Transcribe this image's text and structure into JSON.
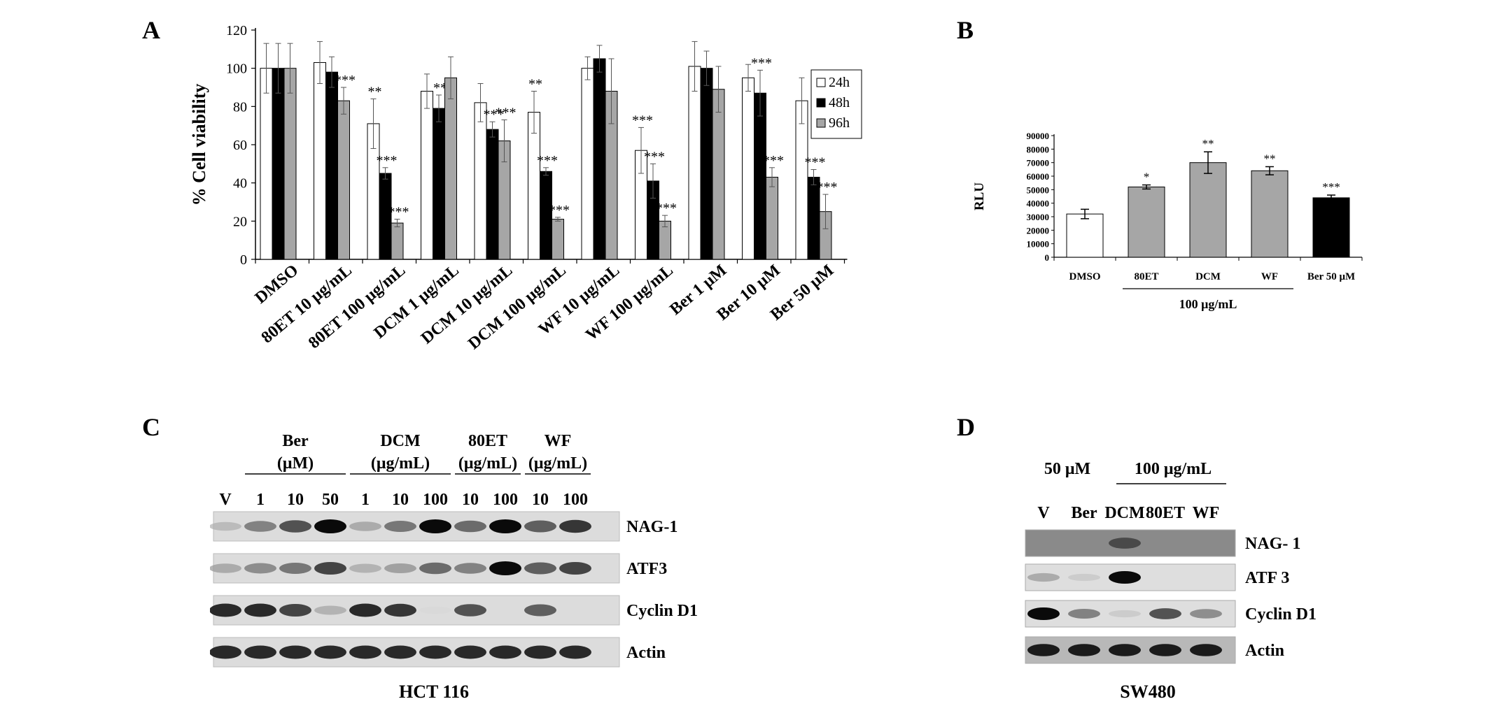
{
  "panels": {
    "a": {
      "letter": "A"
    },
    "b": {
      "letter": "B"
    },
    "c": {
      "letter": "C",
      "cell_line": "HCT 116"
    },
    "d": {
      "letter": "D",
      "cell_line": "SW480"
    }
  },
  "chart_data": [
    {
      "id": "A",
      "type": "bar",
      "ylabel": "% Cell viability",
      "xlabel": "",
      "ylim": [
        0,
        120
      ],
      "yticks": [
        0,
        20,
        40,
        60,
        80,
        100,
        120
      ],
      "legend_position": "top-right",
      "categories": [
        "DMSO",
        "80ET 10 μg/mL",
        "80ET 100 μg/mL",
        "DCM 1 μg/mL",
        "DCM 10 μg/mL",
        "DCM 100 μg/mL",
        "WF 10 μg/mL",
        "WF 100 μg/mL",
        "Ber 1 μM",
        "Ber 10 μM",
        "Ber 50 μM"
      ],
      "series": [
        {
          "name": "24h",
          "color": "#ffffff",
          "values": [
            100,
            103,
            71,
            88,
            82,
            77,
            100,
            57,
            101,
            95,
            83
          ],
          "errors": [
            13,
            11,
            13,
            9,
            10,
            11,
            6,
            12,
            13,
            7,
            12
          ],
          "significance": [
            "",
            "",
            "**",
            "",
            "",
            "**",
            "",
            "***",
            "",
            "",
            ""
          ]
        },
        {
          "name": "48h",
          "color": "#000000",
          "values": [
            100,
            98,
            45,
            79,
            68,
            46,
            105,
            41,
            100,
            87,
            43
          ],
          "errors": [
            13,
            8,
            3,
            7,
            4,
            2,
            7,
            9,
            9,
            12,
            4
          ],
          "significance": [
            "",
            "",
            "***",
            "**",
            "***",
            "***",
            "",
            "***",
            "",
            "***",
            "***"
          ]
        },
        {
          "name": "96h",
          "color": "#a6a6a6",
          "values": [
            100,
            83,
            19,
            95,
            62,
            21,
            88,
            20,
            89,
            43,
            25
          ],
          "errors": [
            13,
            7,
            2,
            11,
            11,
            1,
            17,
            3,
            12,
            5,
            9
          ],
          "significance": [
            "",
            "***",
            "***",
            "",
            "***",
            "***",
            "",
            "***",
            "",
            "***",
            "***"
          ]
        }
      ]
    },
    {
      "id": "B",
      "type": "bar",
      "ylabel": "RLU",
      "xlabel": "",
      "ylim": [
        0,
        90000
      ],
      "yticks": [
        0,
        10000,
        20000,
        30000,
        40000,
        50000,
        60000,
        70000,
        80000,
        90000
      ],
      "categories": [
        "DMSO",
        "80ET",
        "DCM",
        "WF",
        "Ber 50 μM"
      ],
      "group_label": "100 μg/mL",
      "series": [
        {
          "name": "",
          "values": [
            32000,
            52000,
            70000,
            64000,
            44000
          ],
          "errors": [
            3500,
            1500,
            8000,
            3000,
            2000
          ],
          "colors": [
            "#ffffff",
            "#a6a6a6",
            "#a6a6a6",
            "#a6a6a6",
            "#000000"
          ],
          "significance": [
            "",
            "*",
            "**",
            "**",
            "***"
          ]
        }
      ]
    }
  ],
  "blot_c": {
    "group_headers": [
      {
        "line1": "Ber",
        "line2": "(μM)"
      },
      {
        "line1": "DCM",
        "line2": "(μg/mL)"
      },
      {
        "line1": "80ET",
        "line2": "(μg/mL)"
      },
      {
        "line1": "WF",
        "line2": "(μg/mL)"
      }
    ],
    "lanes": [
      "V",
      "1",
      "10",
      "50",
      "1",
      "10",
      "100",
      "10",
      "100",
      "10",
      "100"
    ],
    "rows": [
      {
        "label": "NAG-1",
        "intensity": [
          0.25,
          0.55,
          0.75,
          1.0,
          0.35,
          0.6,
          1.0,
          0.65,
          1.0,
          0.7,
          0.85
        ]
      },
      {
        "label": "ATF3",
        "intensity": [
          0.35,
          0.5,
          0.6,
          0.8,
          0.3,
          0.4,
          0.65,
          0.55,
          1.0,
          0.7,
          0.8
        ]
      },
      {
        "label": "Cyclin D1",
        "intensity": [
          0.9,
          0.9,
          0.8,
          0.3,
          0.9,
          0.85,
          0.05,
          0.75,
          0.0,
          0.7,
          0.0
        ]
      },
      {
        "label": "Actin",
        "intensity": [
          0.9,
          0.9,
          0.9,
          0.9,
          0.9,
          0.9,
          0.9,
          0.9,
          0.9,
          0.9,
          0.9
        ]
      }
    ]
  },
  "blot_d": {
    "headers": {
      "left": "50 μM",
      "right": "100 μg/mL"
    },
    "lanes": [
      "V",
      "Ber",
      "DCM",
      "80ET",
      "WF"
    ],
    "rows": [
      {
        "label": "NAG- 1",
        "intensity": [
          0.0,
          0.0,
          0.75,
          0.0,
          0.0
        ]
      },
      {
        "label": "ATF 3",
        "intensity": [
          0.35,
          0.15,
          1.0,
          0.0,
          0.0
        ]
      },
      {
        "label": "Cyclin D1",
        "intensity": [
          1.0,
          0.55,
          0.15,
          0.75,
          0.5
        ]
      },
      {
        "label": "Actin",
        "intensity": [
          0.95,
          0.95,
          0.95,
          0.95,
          0.95
        ]
      }
    ]
  }
}
